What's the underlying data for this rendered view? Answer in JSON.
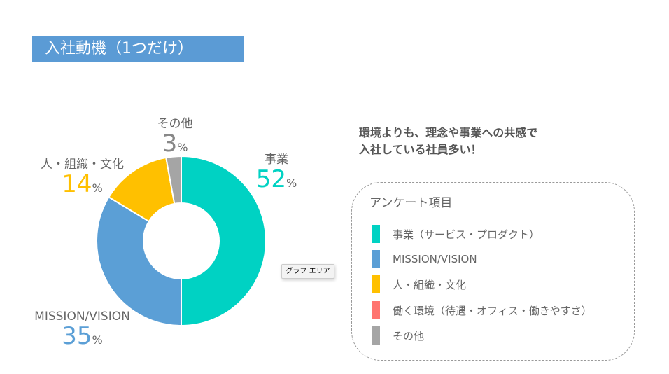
{
  "title": "入社動機（1つだけ）",
  "note_lines": [
    "環境よりも、理念や事業への共感で",
    "入社している社員多い！"
  ],
  "tooltip": "グラフ エリア",
  "chart_data": {
    "type": "pie",
    "donut": true,
    "title": "入社動機（1つだけ）",
    "categories": [
      "事業",
      "MISSION/VISION",
      "人・組織・文化",
      "その他"
    ],
    "values": [
      52,
      35,
      14,
      3
    ],
    "value_labels": [
      "52",
      "35",
      "14",
      "3"
    ],
    "unit": "%",
    "colors": [
      "#00d2c3",
      "#5b9fd6",
      "#ffc000",
      "#a5a5a5"
    ]
  },
  "legend": {
    "title": "アンケート項目",
    "items": [
      {
        "label": "事業（サービス・プロダクト）",
        "color": "#00d2c3"
      },
      {
        "label": "MISSION/VISION",
        "color": "#5b9fd6"
      },
      {
        "label": "人・組織・文化",
        "color": "#ffc000"
      },
      {
        "label": "働く環境（待遇・オフィス・働きやすさ）",
        "color": "#ff7470"
      },
      {
        "label": "その他",
        "color": "#a5a5a5"
      }
    ]
  }
}
